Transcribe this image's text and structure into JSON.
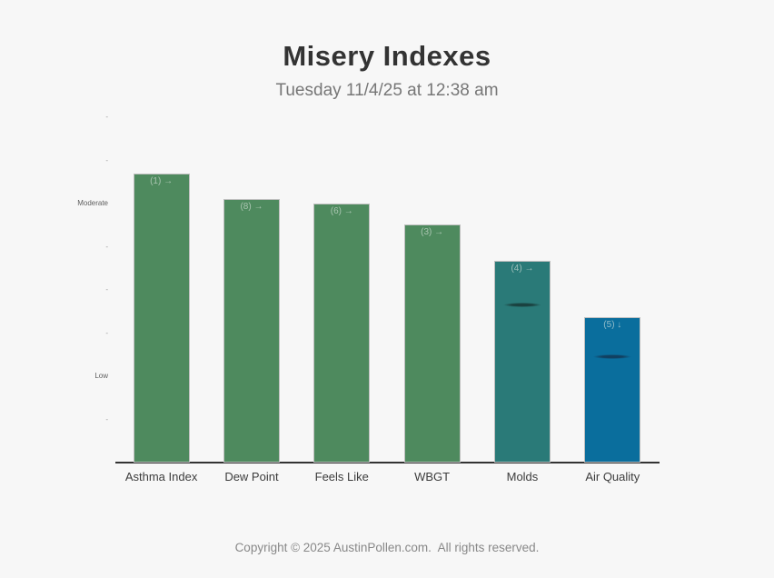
{
  "page": {
    "title": "Misery Indexes",
    "subtitle": "Tuesday 11/4/25 at 12:38 am",
    "footer": "Copyright © 2025 AustinPollen.com.  All rights reserved.",
    "background_color": "#f7f7f7",
    "title_color": "#333333",
    "subtitle_color": "#777777",
    "footer_color": "#888888"
  },
  "chart_data": {
    "type": "bar",
    "title": "Misery Indexes",
    "subtitle": "Tuesday 11/4/25 at 12:38 am",
    "categories": [
      "Asthma Index",
      "Dew Point",
      "Feels Like",
      "WBGT",
      "Molds",
      "Air Quality"
    ],
    "values": [
      6.7,
      6.1,
      6.0,
      5.52,
      4.67,
      3.36
    ],
    "bar_labels": [
      "(1) →",
      "(8) →",
      "(6) →",
      "(3) →",
      "(4) →",
      "(5) ↓"
    ],
    "bar_colors": [
      "#4e8a5e",
      "#4e8a5e",
      "#4e8a5e",
      "#4e8a5e",
      "#2a7a78",
      "#0a6e9d"
    ],
    "markers": [
      null,
      null,
      null,
      null,
      3.66,
      2.45
    ],
    "marker_colors": [
      null,
      null,
      null,
      null,
      "#1a4240",
      "#114061"
    ],
    "y_ticks": [
      {
        "value": 8,
        "label": "-"
      },
      {
        "value": 7,
        "label": "-"
      },
      {
        "value": 6,
        "label": "Moderate"
      },
      {
        "value": 5,
        "label": "-"
      },
      {
        "value": 4,
        "label": "-"
      },
      {
        "value": 3,
        "label": "-"
      },
      {
        "value": 2,
        "label": "Low"
      },
      {
        "value": 1,
        "label": "-"
      }
    ],
    "ylim": [
      0,
      8
    ],
    "xlabel": "",
    "ylabel": "",
    "grid": false,
    "legend": false,
    "axis_line_color": "#333333"
  }
}
